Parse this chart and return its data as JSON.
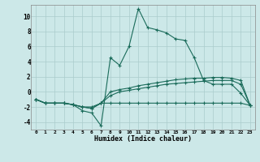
{
  "xlabel": "Humidex (Indice chaleur)",
  "bg_color": "#cce8e8",
  "grid_color": "#aacccc",
  "line_color": "#1a6b5a",
  "xlim": [
    -0.5,
    23.5
  ],
  "ylim": [
    -5,
    11.5
  ],
  "xticks": [
    0,
    1,
    2,
    3,
    4,
    5,
    6,
    7,
    8,
    9,
    10,
    11,
    12,
    13,
    14,
    15,
    16,
    17,
    18,
    19,
    20,
    21,
    22,
    23
  ],
  "yticks": [
    -4,
    -2,
    0,
    2,
    4,
    6,
    8,
    10
  ],
  "series": [
    {
      "x": [
        0,
        1,
        2,
        3,
        4,
        5,
        6,
        7,
        8,
        9,
        10,
        11,
        12,
        13,
        14,
        15,
        16,
        17,
        18,
        19,
        20,
        21,
        22,
        23
      ],
      "y": [
        -1.0,
        -1.5,
        -1.5,
        -1.5,
        -1.7,
        -2.0,
        -2.0,
        -1.5,
        -1.5,
        -1.5,
        -1.5,
        -1.5,
        -1.5,
        -1.5,
        -1.5,
        -1.5,
        -1.5,
        -1.5,
        -1.5,
        -1.5,
        -1.5,
        -1.5,
        -1.5,
        -1.8
      ]
    },
    {
      "x": [
        0,
        1,
        2,
        3,
        4,
        5,
        6,
        7,
        8,
        9,
        10,
        11,
        12,
        13,
        14,
        15,
        16,
        17,
        18,
        19,
        20,
        21,
        22,
        23
      ],
      "y": [
        -1.0,
        -1.5,
        -1.5,
        -1.5,
        -1.7,
        -2.0,
        -2.2,
        -1.5,
        -0.5,
        0.0,
        0.2,
        0.4,
        0.6,
        0.8,
        1.0,
        1.1,
        1.2,
        1.3,
        1.4,
        1.5,
        1.5,
        1.5,
        1.0,
        -1.8
      ]
    },
    {
      "x": [
        0,
        1,
        2,
        3,
        4,
        5,
        6,
        7,
        8,
        9,
        10,
        11,
        12,
        13,
        14,
        15,
        16,
        17,
        18,
        19,
        20,
        21,
        22,
        23
      ],
      "y": [
        -1.0,
        -1.5,
        -1.5,
        -1.5,
        -1.7,
        -2.0,
        -2.2,
        -1.5,
        0.0,
        0.3,
        0.5,
        0.8,
        1.0,
        1.2,
        1.4,
        1.6,
        1.7,
        1.8,
        1.8,
        1.9,
        1.9,
        1.8,
        1.5,
        -1.8
      ]
    },
    {
      "x": [
        0,
        1,
        2,
        3,
        4,
        5,
        6,
        7,
        8,
        9,
        10,
        11,
        12,
        13,
        14,
        15,
        16,
        17,
        18,
        19,
        20,
        21,
        22,
        23
      ],
      "y": [
        -1.0,
        -1.5,
        -1.5,
        -1.5,
        -1.7,
        -2.5,
        -2.8,
        -4.5,
        4.5,
        3.5,
        6.0,
        11.0,
        8.5,
        8.2,
        7.8,
        7.0,
        6.8,
        4.5,
        1.5,
        1.0,
        1.0,
        1.0,
        -0.2,
        -1.8
      ]
    }
  ]
}
